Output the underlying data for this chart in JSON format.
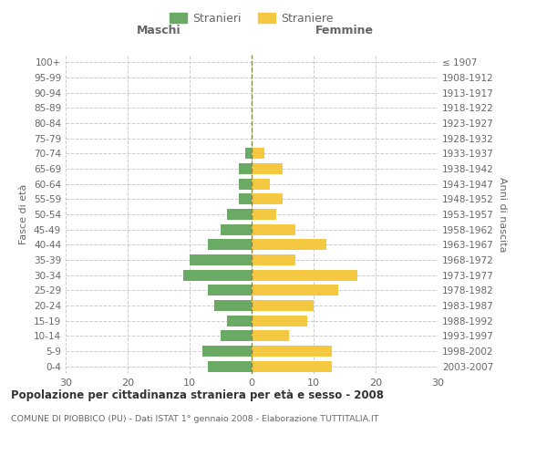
{
  "age_groups": [
    "0-4",
    "5-9",
    "10-14",
    "15-19",
    "20-24",
    "25-29",
    "30-34",
    "35-39",
    "40-44",
    "45-49",
    "50-54",
    "55-59",
    "60-64",
    "65-69",
    "70-74",
    "75-79",
    "80-84",
    "85-89",
    "90-94",
    "95-99",
    "100+"
  ],
  "birth_years": [
    "2003-2007",
    "1998-2002",
    "1993-1997",
    "1988-1992",
    "1983-1987",
    "1978-1982",
    "1973-1977",
    "1968-1972",
    "1963-1967",
    "1958-1962",
    "1953-1957",
    "1948-1952",
    "1943-1947",
    "1938-1942",
    "1933-1937",
    "1928-1932",
    "1923-1927",
    "1918-1922",
    "1913-1917",
    "1908-1912",
    "≤ 1907"
  ],
  "maschi": [
    7,
    8,
    5,
    4,
    6,
    7,
    11,
    10,
    7,
    5,
    4,
    2,
    2,
    2,
    1,
    0,
    0,
    0,
    0,
    0,
    0
  ],
  "femmine": [
    13,
    13,
    6,
    9,
    10,
    14,
    17,
    7,
    12,
    7,
    4,
    5,
    3,
    5,
    2,
    0,
    0,
    0,
    0,
    0,
    0
  ],
  "maschi_color": "#6aaa64",
  "femmine_color": "#f5c842",
  "title_main": "Popolazione per cittadinanza straniera per età e sesso - 2008",
  "title_sub": "COMUNE DI PIOBBICO (PU) - Dati ISTAT 1° gennaio 2008 - Elaborazione TUTTITALIA.IT",
  "legend_maschi": "Stranieri",
  "legend_femmine": "Straniere",
  "xlabel_left": "Maschi",
  "xlabel_right": "Femmine",
  "ylabel_left": "Fasce di età",
  "ylabel_right": "Anni di nascita",
  "xlim": 30,
  "background_color": "#ffffff",
  "grid_color": "#cccccc",
  "text_color": "#666666",
  "bar_height": 0.72
}
